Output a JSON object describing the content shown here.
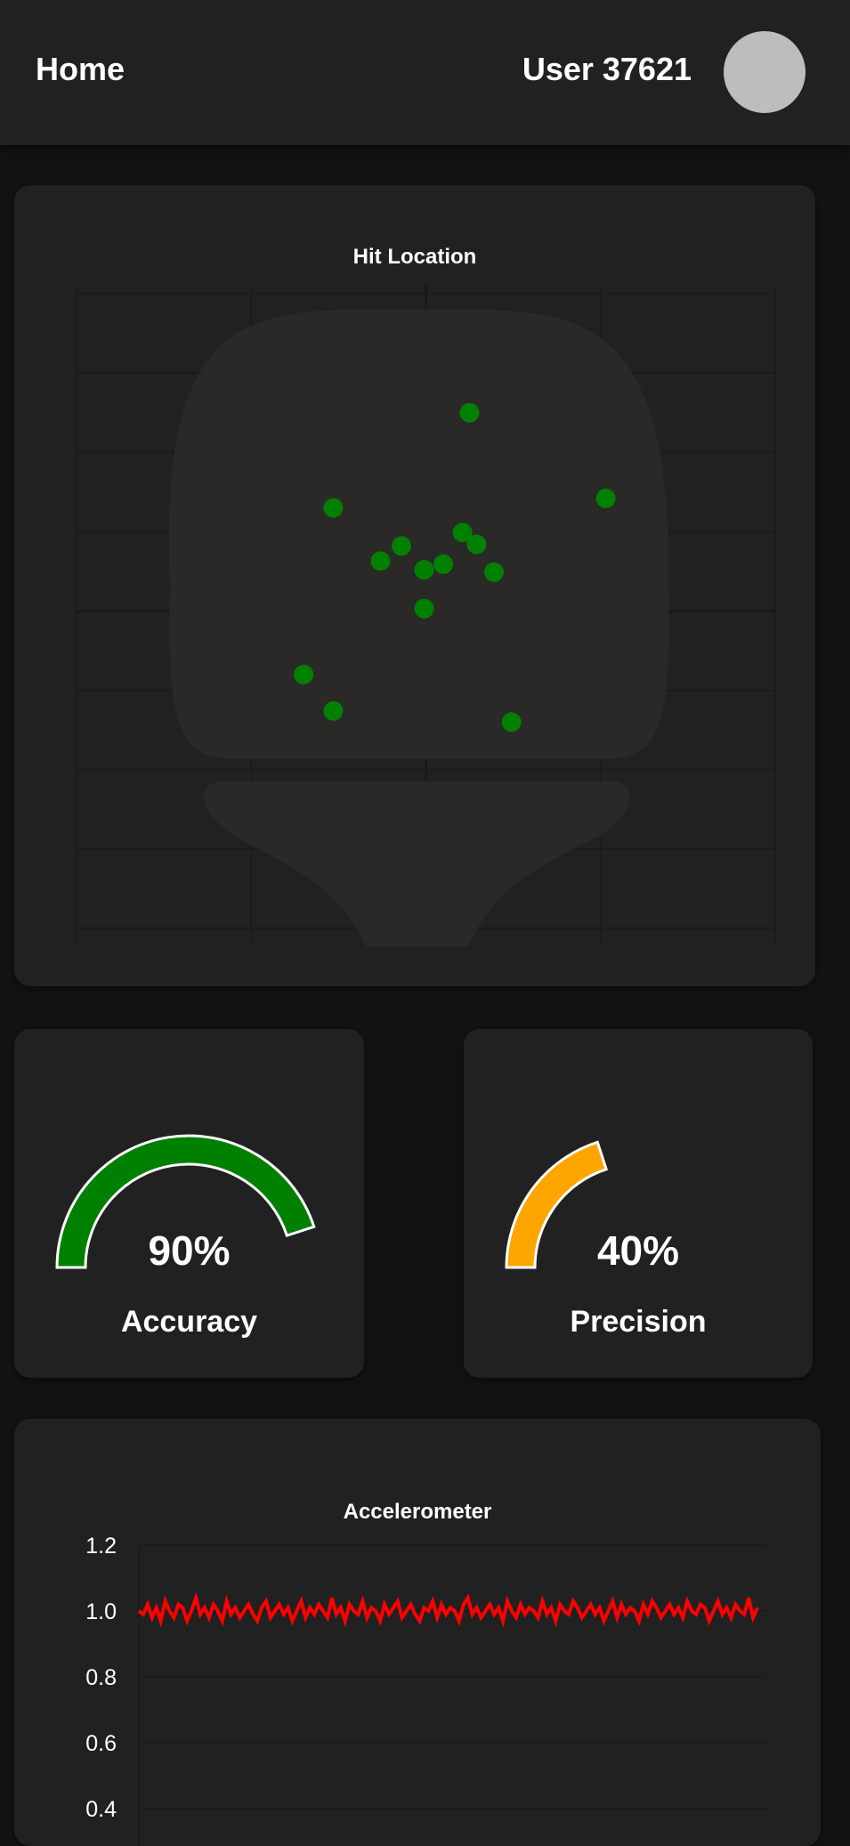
{
  "header": {
    "home_label": "Home",
    "user_label": "User 37621"
  },
  "hit_location": {
    "title": "Hit Location",
    "point_color": "#008000",
    "paddle_color": "#2b2828"
  },
  "accuracy": {
    "value_text": "90%",
    "label": "Accuracy",
    "fraction": 0.9,
    "color": "#008000"
  },
  "precision": {
    "value_text": "40%",
    "label": "Precision",
    "fraction": 0.4,
    "color": "#ffa500"
  },
  "accelerometer": {
    "title": "Accelerometer",
    "line_color": "#ff0000"
  },
  "chart_data": [
    {
      "type": "scatter",
      "title": "Hit Location",
      "xlim": [
        -2,
        2
      ],
      "ylim": [
        -4,
        4
      ],
      "grid": true,
      "points": [
        {
          "x": 0.25,
          "y": 2.5
        },
        {
          "x": -0.53,
          "y": 1.3
        },
        {
          "x": 1.03,
          "y": 1.42
        },
        {
          "x": 0.21,
          "y": 0.99
        },
        {
          "x": 0.29,
          "y": 0.84
        },
        {
          "x": -0.14,
          "y": 0.82
        },
        {
          "x": -0.26,
          "y": 0.63
        },
        {
          "x": 0.1,
          "y": 0.59
        },
        {
          "x": -0.01,
          "y": 0.52
        },
        {
          "x": 0.39,
          "y": 0.49
        },
        {
          "x": -0.01,
          "y": 0.03
        },
        {
          "x": -0.7,
          "y": -0.8
        },
        {
          "x": -0.53,
          "y": -1.26
        },
        {
          "x": 0.49,
          "y": -1.4
        }
      ]
    },
    {
      "type": "line",
      "title": "Accelerometer",
      "ylim": [
        0.4,
        1.2
      ],
      "yticks": [
        "1.2",
        "1.0",
        "0.8",
        "0.6",
        "0.4"
      ],
      "grid": true,
      "series": [
        {
          "values": [
            1.0,
            0.99,
            1.02,
            0.98,
            1.01,
            0.97,
            1.03,
            1.0,
            0.98,
            1.02,
            1.01,
            0.97,
            1.0,
            1.04,
            0.99,
            1.01,
            0.98,
            1.02,
            1.0,
            0.97,
            1.03,
            0.99,
            1.01,
            0.98,
            1.0,
            1.02,
            0.99,
            0.97,
            1.01,
            1.03,
            0.98,
            1.0,
            1.02,
            0.99,
            1.01,
            0.97,
            1.0,
            1.03,
            0.98,
            1.01,
            0.99,
            1.02,
            1.0,
            0.98,
            1.04,
            0.99,
            1.01,
            0.97,
            1.02,
            1.0,
            0.99,
            1.03,
            0.98,
            1.01,
            1.0,
            0.97,
            1.02,
            0.99,
            1.01,
            1.03,
            0.98,
            1.0,
            1.02,
            0.99,
            0.97,
            1.01,
            1.0,
            1.03,
            0.98,
            1.02,
            0.99,
            1.01,
            1.0,
            0.97,
            1.02,
            1.04,
            0.99,
            1.01,
            0.98,
            1.0,
            1.02,
            0.99,
            1.01,
            0.97,
            1.03,
            1.0,
            0.98,
            1.02,
            0.99,
            1.01,
            1.0,
            0.98,
            1.03,
            0.99,
            1.01,
            0.97,
            1.02,
            1.0,
            0.99,
            1.03,
            1.01,
            0.98,
            1.0,
            1.02,
            0.99,
            1.01,
            0.97,
            1.0,
            1.03,
            0.98,
            1.02,
            0.99,
            1.01,
            1.0,
            0.97,
            1.02,
            0.99,
            1.03,
            1.01,
            0.98,
            1.0,
            1.02,
            0.99,
            1.01,
            0.98,
            1.03,
            1.0,
            0.99,
            1.02,
            1.01,
            0.97,
            1.0,
            1.03,
            0.99,
            1.01,
            0.98,
            1.02,
            1.0,
            0.99,
            1.04,
            0.98,
            1.01
          ]
        }
      ]
    }
  ]
}
